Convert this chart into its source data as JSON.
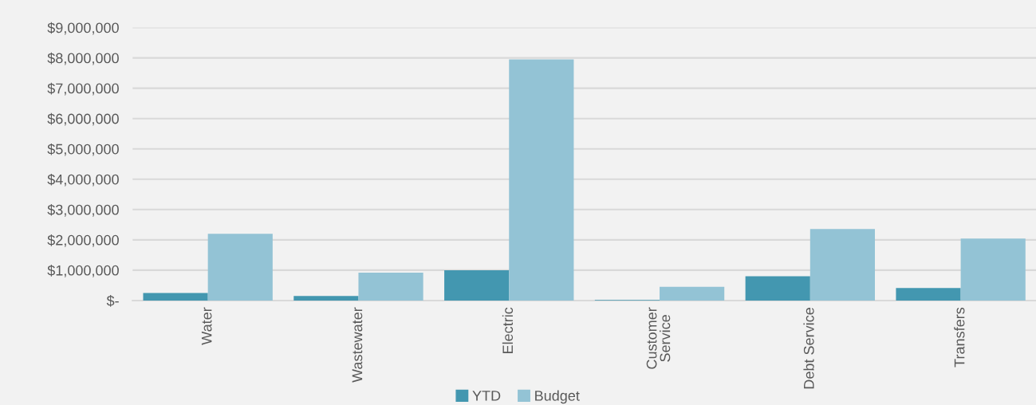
{
  "chart_data": {
    "type": "bar",
    "categories": [
      "Water",
      "Wastewater",
      "Electric",
      "Customer\nService",
      "Debt Service",
      "Transfers"
    ],
    "series": [
      {
        "name": "YTD",
        "color": "#4397b0",
        "values": [
          250000,
          150000,
          1000000,
          20000,
          800000,
          410000
        ]
      },
      {
        "name": "Budget",
        "color": "#93c3d5",
        "values": [
          2200000,
          920000,
          7950000,
          450000,
          2360000,
          2040000
        ]
      }
    ],
    "ylim": [
      0,
      9000000
    ],
    "yticks": [
      {
        "value": 0,
        "label": "$-"
      },
      {
        "value": 1000000,
        "label": "$1,000,000"
      },
      {
        "value": 2000000,
        "label": "$2,000,000"
      },
      {
        "value": 3000000,
        "label": "$3,000,000"
      },
      {
        "value": 4000000,
        "label": "$4,000,000"
      },
      {
        "value": 5000000,
        "label": "$5,000,000"
      },
      {
        "value": 6000000,
        "label": "$6,000,000"
      },
      {
        "value": 7000000,
        "label": "$7,000,000"
      },
      {
        "value": 8000000,
        "label": "$8,000,000"
      },
      {
        "value": 9000000,
        "label": "$9,000,000"
      }
    ],
    "grid": "y",
    "legend": "bottom"
  }
}
